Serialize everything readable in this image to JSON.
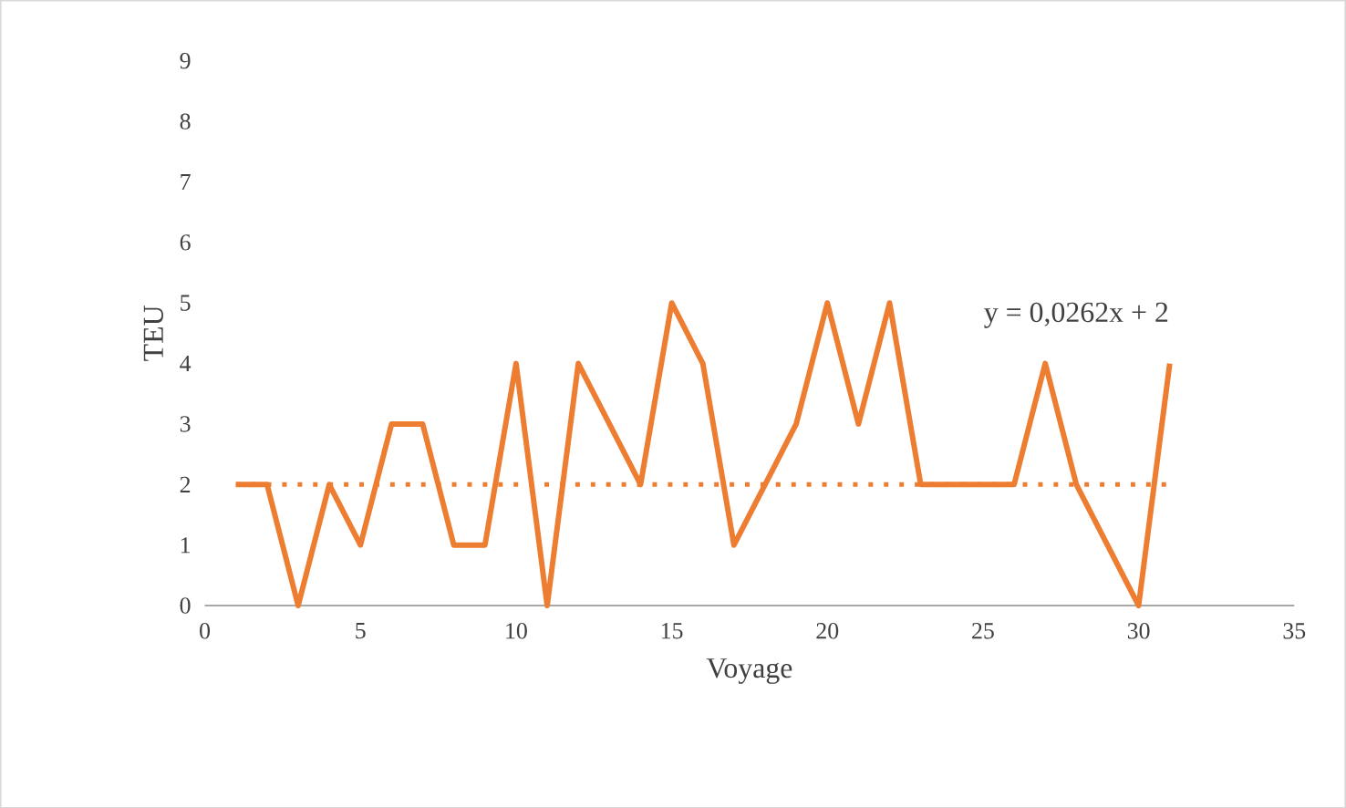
{
  "chart_data": {
    "type": "line",
    "xlabel": "Voyage",
    "ylabel": "TEU",
    "xlim": [
      0,
      35
    ],
    "xticks": [
      0,
      5,
      10,
      15,
      20,
      25,
      30,
      35
    ],
    "ylim": [
      0,
      9
    ],
    "yticks": [
      0,
      1,
      2,
      3,
      4,
      5,
      6,
      7,
      8,
      9
    ],
    "grid": false,
    "marker": "none",
    "series": [
      {
        "color": "#ed7d31",
        "line_style": "solid",
        "x": [
          1,
          2,
          3,
          4,
          5,
          6,
          7,
          8,
          9,
          10,
          11,
          12,
          13,
          14,
          15,
          16,
          17,
          18,
          19,
          20,
          21,
          22,
          23,
          24,
          25,
          26,
          27,
          28,
          29,
          30,
          31
        ],
        "values": [
          2,
          2,
          0,
          2,
          1,
          3,
          3,
          1,
          1,
          4,
          0,
          4,
          3,
          2,
          5,
          4,
          1,
          2,
          3,
          5,
          3,
          5,
          2,
          2,
          2,
          2,
          4,
          2,
          1,
          0,
          4
        ]
      },
      {
        "type": "line",
        "color": "#ed7d31",
        "line_style": "dotted",
        "x": [
          1,
          31
        ],
        "values": [
          2,
          2
        ]
      }
    ],
    "annotations": [
      "y = 0,0262x + 2"
    ]
  }
}
